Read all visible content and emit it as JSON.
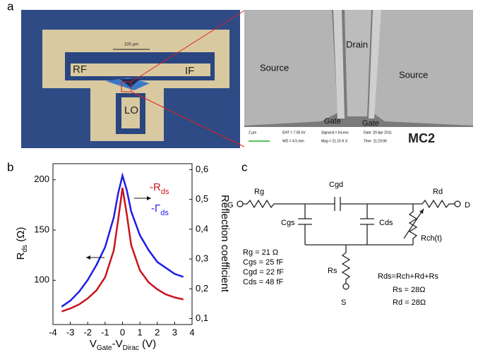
{
  "panel_a": {
    "label": "a",
    "optical": {
      "labels": [
        "RF",
        "IF",
        "LO"
      ],
      "scale_bar": "100 µm"
    },
    "sem": {
      "labels": [
        "Source",
        "Drain",
        "Source",
        "Gate",
        "Gate"
      ],
      "info": [
        "2 µm",
        "EHT = 7.00 kV",
        "WD = 4.5 mm",
        "Signal A = InLens",
        "Mag = 21.15 K X",
        "Date :20 Apr 2011",
        "Time :11:23:06"
      ],
      "logo": "MC2"
    }
  },
  "chart_data": {
    "type": "line",
    "panel_label": "b",
    "x": [
      -3.5,
      -3,
      -2.5,
      -2,
      -1.5,
      -1,
      -0.5,
      -0.25,
      0,
      0.25,
      0.5,
      1,
      1.5,
      2,
      2.5,
      3,
      3.5
    ],
    "series": [
      {
        "name": "-R",
        "name_sub": "ds",
        "color": "#c8141e",
        "values": [
          69,
          72,
          76,
          82,
          90,
          103,
          130,
          160,
          192,
          165,
          135,
          110,
          98,
          91,
          86,
          83,
          81
        ]
      },
      {
        "name": "-Γ",
        "name_sub": "ds",
        "color": "#1e1ee6",
        "axis": "y2",
        "values": [
          0.14,
          0.16,
          0.19,
          0.23,
          0.28,
          0.34,
          0.44,
          0.52,
          0.58,
          0.53,
          0.46,
          0.38,
          0.33,
          0.29,
          0.27,
          0.25,
          0.24
        ]
      }
    ],
    "xlim": [
      -4,
      4
    ],
    "xticks": [
      -4,
      -3,
      -2,
      -1,
      0,
      1,
      2,
      3,
      4
    ],
    "ylim": [
      56,
      216
    ],
    "yticks": [
      100,
      150,
      200
    ],
    "y2lim": [
      0.08,
      0.62
    ],
    "y2ticks": [
      {
        "value": 0.1,
        "label": "0,1"
      },
      {
        "value": 0.2,
        "label": "0,2"
      },
      {
        "value": 0.3,
        "label": "0,3"
      },
      {
        "value": 0.4,
        "label": "0,4"
      },
      {
        "value": 0.5,
        "label": "0,5"
      },
      {
        "value": 0.6,
        "label": "0,6"
      }
    ],
    "xlabel": [
      {
        "text": "V"
      },
      {
        "text": "Gate",
        "sub": true
      },
      {
        "text": "-V"
      },
      {
        "text": "Dirac",
        "sub": true
      },
      {
        "text": " (V)"
      }
    ],
    "ylabel": [
      {
        "text": "R"
      },
      {
        "text": "ds",
        "sub": true
      },
      {
        "text": " (Ω)"
      }
    ],
    "y2label": "Reflection coefficient"
  },
  "panel_c": {
    "label": "c",
    "nodes": [
      "G",
      "D",
      "S"
    ],
    "components": [
      "Rg",
      "Cgd",
      "Rd",
      "Cgs",
      "Cds",
      "Rch(t)",
      "Rs"
    ],
    "values": [
      "Rg = 21 Ω",
      "Cgs = 25 fF",
      "Cgd = 22 fF",
      "Cds = 48 fF"
    ],
    "equations": [
      "Rds=Rch+Rd+Rs",
      "Rs = 28Ω",
      "Rd = 28Ω"
    ]
  }
}
